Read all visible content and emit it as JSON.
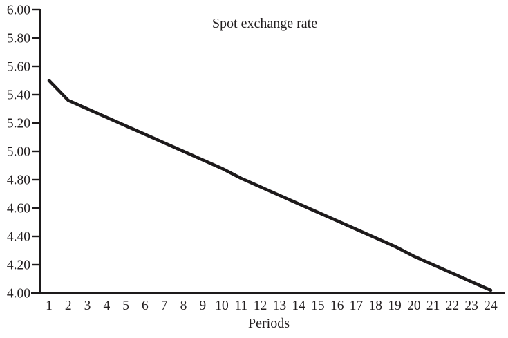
{
  "chart_data": {
    "type": "line",
    "title": "Spot exchange rate",
    "xlabel": "Periods",
    "ylabel": "",
    "x": [
      1,
      2,
      3,
      4,
      5,
      6,
      7,
      8,
      9,
      10,
      11,
      12,
      13,
      14,
      15,
      16,
      17,
      18,
      19,
      20,
      21,
      22,
      23,
      24
    ],
    "x_ticks": [
      "1",
      "2",
      "3",
      "4",
      "5",
      "6",
      "7",
      "8",
      "9",
      "10",
      "11",
      "12",
      "13",
      "14",
      "15",
      "16",
      "17",
      "18",
      "19",
      "20",
      "21",
      "22",
      "23",
      "24"
    ],
    "series": [
      {
        "name": "Spot exchange rate",
        "values": [
          5.5,
          5.36,
          5.3,
          5.24,
          5.18,
          5.12,
          5.06,
          5.0,
          4.94,
          4.88,
          4.81,
          4.75,
          4.69,
          4.63,
          4.57,
          4.51,
          4.45,
          4.39,
          4.33,
          4.26,
          4.2,
          4.14,
          4.08,
          4.02
        ]
      }
    ],
    "y_ticks": [
      "6.00",
      "5.80",
      "5.60",
      "5.40",
      "5.20",
      "5.00",
      "4.80",
      "4.60",
      "4.40",
      "4.20",
      "4.00"
    ],
    "ylim": [
      4.0,
      6.0
    ],
    "xlim": [
      1,
      24
    ],
    "grid": false,
    "legend": "none",
    "line_color": "#1d1a1b",
    "axis_color": "#1d1a1b",
    "text_color": "#231f20",
    "background": "#ffffff"
  }
}
